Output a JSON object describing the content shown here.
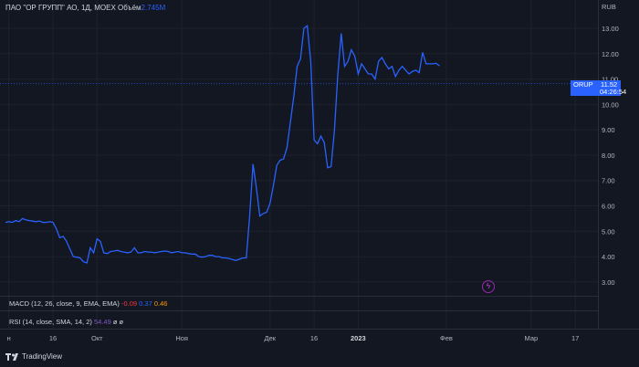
{
  "header": {
    "title": "ПАО \"ОР ГРУПП\" АО, 1Д, MOEX",
    "volume_label": "Объём",
    "volume_value": "2.745M",
    "currency": "RUB"
  },
  "indicators": {
    "macd": {
      "label": "MACD (12, 26, close, 9, EMA, EMA)",
      "v1": "-0.09",
      "v2": "0.37",
      "v3": "0.46"
    },
    "rsi": {
      "label": "RSI (14, close, SMA, 14, 2)",
      "v1": "54.49",
      "v2": "ø",
      "v3": "ø"
    }
  },
  "price_tag": {
    "symbol": "ORUP",
    "price": "11.52",
    "countdown": "04:26:54"
  },
  "branding": {
    "name": "TradingView"
  },
  "colors": {
    "line": "#2962ff",
    "background": "#131722",
    "grid": "#1e222d"
  },
  "chart_data": {
    "type": "line",
    "yaxis_ticks": [
      "3.00",
      "4.00",
      "5.00",
      "6.00",
      "7.00",
      "8.00",
      "9.00",
      "10.00",
      "11.00",
      "12.00",
      "13.00"
    ],
    "ylim": [
      2.6,
      13.9
    ],
    "xlim": [
      0,
      172
    ],
    "xaxis_ticks": [
      {
        "label": "н",
        "x": 1
      },
      {
        "label": "16",
        "x": 14
      },
      {
        "label": "Окт",
        "x": 27
      },
      {
        "label": "Ноя",
        "x": 52
      },
      {
        "label": "Дек",
        "x": 78
      },
      {
        "label": "16",
        "x": 91
      },
      {
        "label": "2023",
        "x": 104
      },
      {
        "label": "Фев",
        "x": 130
      },
      {
        "label": "Мар",
        "x": 155
      },
      {
        "label": "17",
        "x": 168
      }
    ],
    "series": [
      {
        "values": [
          [
            0,
            5.35
          ],
          [
            1,
            5.38
          ],
          [
            2,
            5.35
          ],
          [
            3,
            5.42
          ],
          [
            4,
            5.38
          ],
          [
            5,
            5.5
          ],
          [
            6,
            5.45
          ],
          [
            7,
            5.42
          ],
          [
            8,
            5.4
          ],
          [
            9,
            5.38
          ],
          [
            10,
            5.4
          ],
          [
            11,
            5.35
          ],
          [
            12,
            5.35
          ],
          [
            13,
            5.38
          ],
          [
            14,
            5.35
          ],
          [
            15,
            5.1
          ],
          [
            16,
            4.75
          ],
          [
            17,
            4.8
          ],
          [
            18,
            4.6
          ],
          [
            19,
            4.3
          ],
          [
            20,
            4.0
          ],
          [
            21,
            3.98
          ],
          [
            22,
            3.95
          ],
          [
            23,
            3.8
          ],
          [
            24,
            3.75
          ],
          [
            25,
            4.35
          ],
          [
            26,
            4.15
          ],
          [
            27,
            4.7
          ],
          [
            28,
            4.6
          ],
          [
            29,
            4.15
          ],
          [
            30,
            4.12
          ],
          [
            31,
            4.2
          ],
          [
            32,
            4.22
          ],
          [
            33,
            4.25
          ],
          [
            34,
            4.2
          ],
          [
            35,
            4.18
          ],
          [
            36,
            4.15
          ],
          [
            37,
            4.18
          ],
          [
            38,
            4.35
          ],
          [
            39,
            4.15
          ],
          [
            40,
            4.15
          ],
          [
            41,
            4.2
          ],
          [
            42,
            4.18
          ],
          [
            43,
            4.18
          ],
          [
            44,
            4.15
          ],
          [
            45,
            4.18
          ],
          [
            46,
            4.2
          ],
          [
            47,
            4.22
          ],
          [
            48,
            4.2
          ],
          [
            49,
            4.15
          ],
          [
            50,
            4.18
          ],
          [
            51,
            4.2
          ],
          [
            52,
            4.15
          ],
          [
            53,
            4.15
          ],
          [
            54,
            4.12
          ],
          [
            55,
            4.1
          ],
          [
            56,
            4.1
          ],
          [
            57,
            4.0
          ],
          [
            58,
            3.98
          ],
          [
            59,
            4.0
          ],
          [
            60,
            4.05
          ],
          [
            61,
            4.05
          ],
          [
            62,
            4.0
          ],
          [
            63,
            4.0
          ],
          [
            64,
            3.95
          ],
          [
            65,
            3.95
          ],
          [
            66,
            3.92
          ],
          [
            67,
            3.88
          ],
          [
            68,
            3.85
          ],
          [
            69,
            3.9
          ],
          [
            70,
            3.95
          ],
          [
            71,
            3.95
          ],
          [
            72,
            5.6
          ],
          [
            73,
            7.65
          ],
          [
            74,
            6.7
          ],
          [
            75,
            5.6
          ],
          [
            76,
            5.7
          ],
          [
            77,
            5.75
          ],
          [
            78,
            6.1
          ],
          [
            79,
            6.8
          ],
          [
            80,
            7.6
          ],
          [
            81,
            7.8
          ],
          [
            82,
            7.85
          ],
          [
            83,
            8.3
          ],
          [
            84,
            9.3
          ],
          [
            85,
            10.3
          ],
          [
            86,
            11.5
          ],
          [
            87,
            11.8
          ],
          [
            88,
            13.0
          ],
          [
            89,
            13.1
          ],
          [
            90,
            11.7
          ],
          [
            91,
            8.6
          ],
          [
            92,
            8.45
          ],
          [
            93,
            8.75
          ],
          [
            94,
            8.5
          ],
          [
            95,
            7.5
          ],
          [
            96,
            7.55
          ],
          [
            97,
            9.0
          ],
          [
            98,
            11.2
          ],
          [
            99,
            12.8
          ],
          [
            100,
            11.5
          ],
          [
            101,
            11.7
          ],
          [
            102,
            12.15
          ],
          [
            103,
            11.9
          ],
          [
            104,
            11.2
          ],
          [
            105,
            11.6
          ],
          [
            106,
            11.4
          ],
          [
            107,
            11.2
          ],
          [
            108,
            11.2
          ],
          [
            109,
            11.0
          ],
          [
            110,
            11.7
          ],
          [
            111,
            11.85
          ],
          [
            112,
            11.6
          ],
          [
            113,
            11.4
          ],
          [
            114,
            11.5
          ],
          [
            115,
            11.1
          ],
          [
            116,
            11.35
          ],
          [
            117,
            11.5
          ],
          [
            118,
            11.35
          ],
          [
            119,
            11.2
          ],
          [
            120,
            11.3
          ],
          [
            121,
            11.35
          ],
          [
            122,
            11.25
          ],
          [
            123,
            12.05
          ],
          [
            124,
            11.6
          ],
          [
            125,
            11.6
          ],
          [
            126,
            11.6
          ],
          [
            127,
            11.62
          ],
          [
            128,
            11.52
          ]
        ]
      }
    ]
  }
}
